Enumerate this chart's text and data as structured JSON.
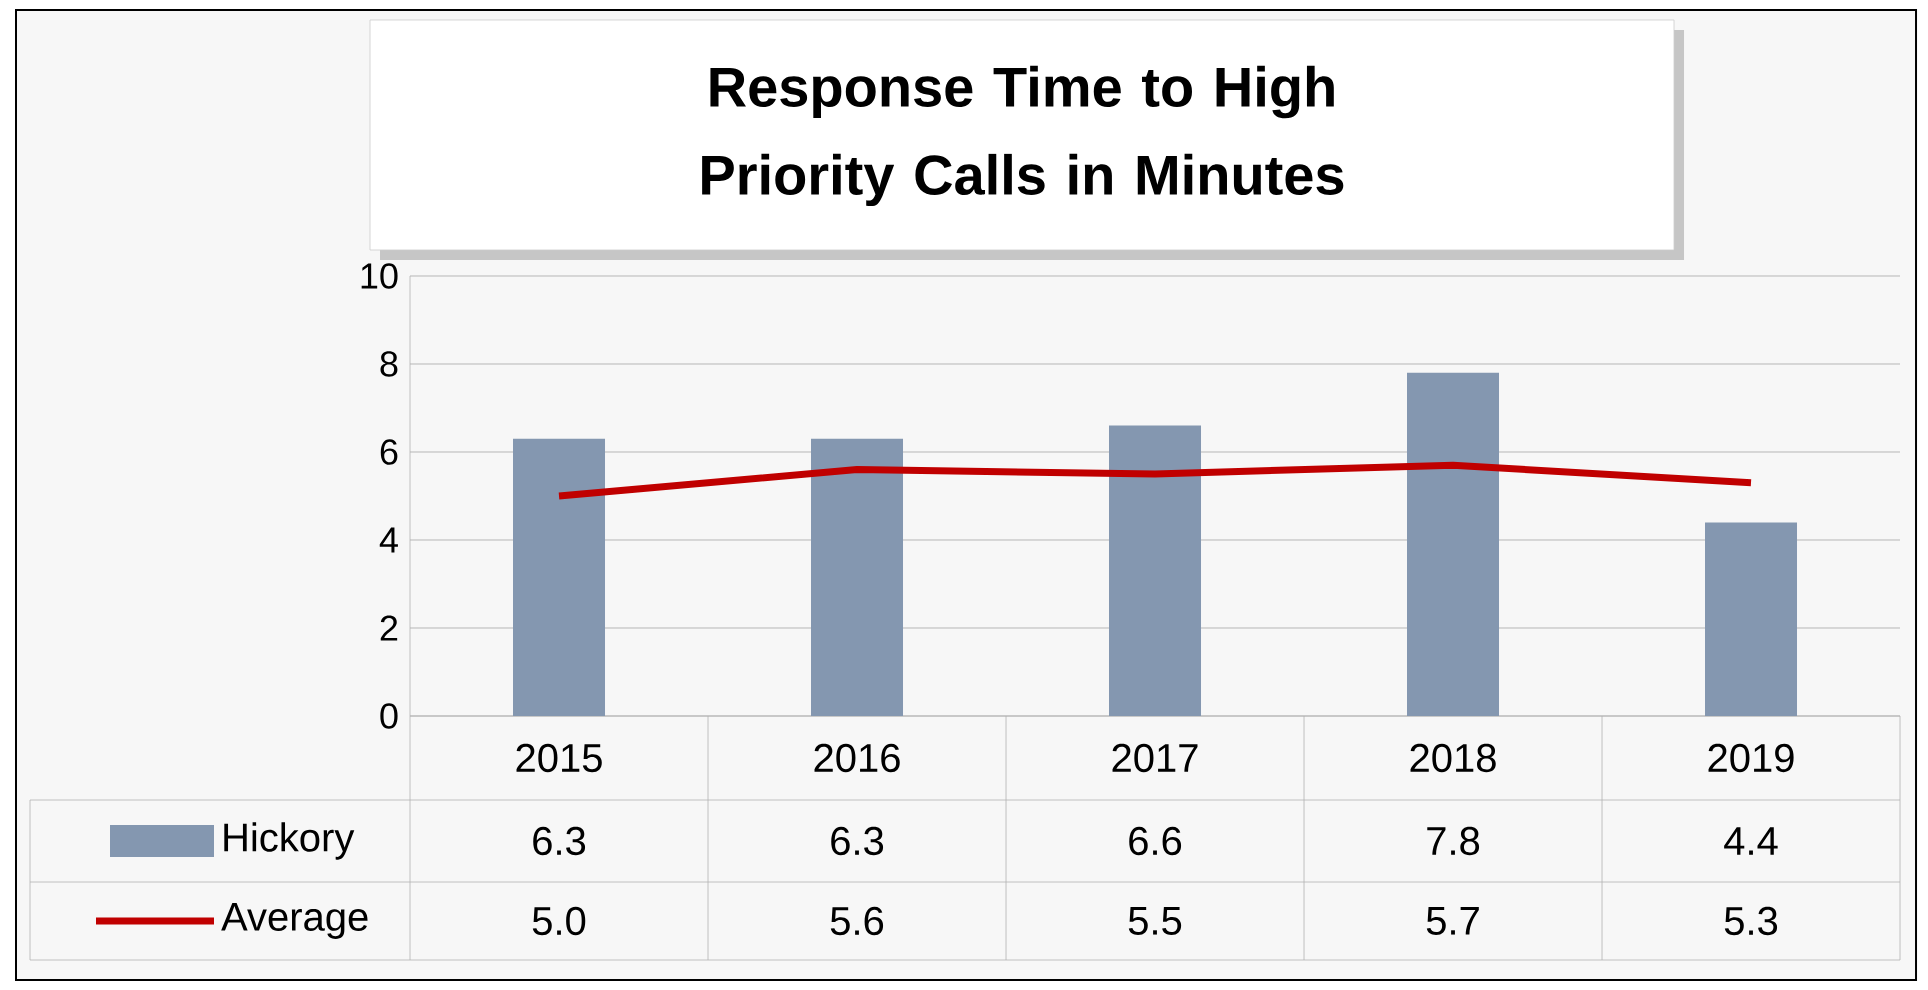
{
  "chart_data": {
    "type": "bar",
    "title": "Response Time to High Priority Calls in Minutes",
    "categories": [
      "2015",
      "2016",
      "2017",
      "2018",
      "2019"
    ],
    "series": [
      {
        "name": "Hickory",
        "color": "#8497b0",
        "values": [
          6.3,
          6.3,
          6.6,
          7.8,
          4.4
        ],
        "value_labels": [
          "6.3",
          "6.3",
          "6.6",
          "7.8",
          "4.4"
        ]
      },
      {
        "name": "Average",
        "type": "line",
        "color": "#c00000",
        "values": [
          5.0,
          5.6,
          5.5,
          5.7,
          5.3
        ],
        "value_labels": [
          "5.0",
          "5.6",
          "5.5",
          "5.7",
          "5.3"
        ]
      }
    ],
    "ylim": [
      0,
      10
    ],
    "yticks": [
      0,
      2,
      4,
      6,
      8,
      10
    ],
    "grid": "y",
    "legend": "bottom"
  }
}
